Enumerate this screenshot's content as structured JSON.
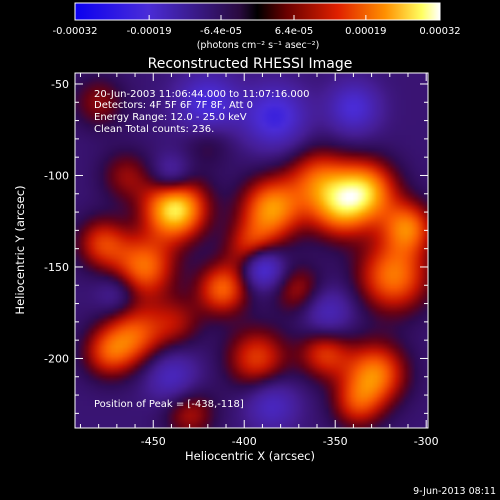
{
  "chart_data": {
    "type": "heatmap",
    "title": "Reconstructed RHESSI Image",
    "xlabel": "Heliocentric X (arcsec)",
    "ylabel": "Heliocentric Y (arcsec)",
    "xlim": [
      -493,
      -299
    ],
    "ylim": [
      -238,
      -44
    ],
    "x_ticks": [
      -450,
      -400,
      -350,
      -300
    ],
    "y_ticks": [
      -50,
      -100,
      -150,
      -200
    ],
    "colorbar": {
      "ticks": [
        -0.00032,
        -0.00019,
        -6.4e-05,
        6.4e-05,
        0.00019,
        0.00032
      ],
      "tick_labels": [
        "-0.00032",
        "-0.00019",
        "-6.4e-05",
        "6.4e-05",
        "0.00019",
        "0.00032"
      ],
      "units_label": "(photons cm⁻² s⁻¹ asec⁻²)",
      "range": [
        -0.00032,
        0.00032
      ]
    },
    "annotations": [
      "20-Jun-2003 11:06:44.000 to 11:07:16.000",
      "Detectors: 4F 5F 6F 7F 8F, Att 0",
      "Energy Range: 12.0 - 25.0 keV",
      "Clean    Total counts: 236."
    ],
    "peak_label": "Position of Peak = [-438,-118]",
    "peak": {
      "x": -438,
      "y": -118
    },
    "sources": [
      {
        "x": -438,
        "y": -118,
        "value": 0.00032,
        "r": 12
      },
      {
        "x": -385,
        "y": -118,
        "value": 0.00024,
        "r": 12
      },
      {
        "x": -396,
        "y": -140,
        "value": 0.00016,
        "r": 10
      },
      {
        "x": -412,
        "y": -162,
        "value": 0.0002,
        "r": 10
      },
      {
        "x": -455,
        "y": -150,
        "value": 0.00021,
        "r": 12
      },
      {
        "x": -478,
        "y": -137,
        "value": 0.00016,
        "r": 10
      },
      {
        "x": -460,
        "y": -187,
        "value": 0.00018,
        "r": 12
      },
      {
        "x": -475,
        "y": -197,
        "value": 0.00015,
        "r": 10
      },
      {
        "x": -360,
        "y": -101,
        "value": 0.00016,
        "r": 12
      },
      {
        "x": -348,
        "y": -118,
        "value": 0.0002,
        "r": 12
      },
      {
        "x": -333,
        "y": -108,
        "value": 0.00024,
        "r": 12
      },
      {
        "x": -318,
        "y": -155,
        "value": 0.00022,
        "r": 14
      },
      {
        "x": -310,
        "y": -128,
        "value": 0.0002,
        "r": 10
      },
      {
        "x": -328,
        "y": -208,
        "value": 0.00022,
        "r": 12
      },
      {
        "x": -356,
        "y": -197,
        "value": 0.00016,
        "r": 10
      },
      {
        "x": -338,
        "y": -225,
        "value": 0.00014,
        "r": 10
      },
      {
        "x": -393,
        "y": -200,
        "value": 0.00017,
        "r": 12
      },
      {
        "x": -430,
        "y": -230,
        "value": 0.00012,
        "r": 10
      },
      {
        "x": -370,
        "y": -163,
        "value": 0.00012,
        "r": 10
      },
      {
        "x": -420,
        "y": -80,
        "value": 8e-05,
        "r": 10
      },
      {
        "x": -465,
        "y": -100,
        "value": 0.0001,
        "r": 10
      },
      {
        "x": -480,
        "y": -60,
        "value": 0.0001,
        "r": 10
      },
      {
        "x": -437,
        "y": -180,
        "value": 0.0001,
        "r": 10
      },
      {
        "x": -420,
        "y": -62,
        "value": -0.00018,
        "r": 12
      },
      {
        "x": -383,
        "y": -68,
        "value": -0.00018,
        "r": 12
      },
      {
        "x": -340,
        "y": -63,
        "value": -0.00015,
        "r": 10
      },
      {
        "x": -390,
        "y": -150,
        "value": -0.00022,
        "r": 8
      },
      {
        "x": -440,
        "y": -100,
        "value": -0.00012,
        "r": 8
      },
      {
        "x": -470,
        "y": -165,
        "value": -8e-05,
        "r": 8
      },
      {
        "x": -355,
        "y": -175,
        "value": -0.00012,
        "r": 10
      },
      {
        "x": -440,
        "y": -210,
        "value": -0.00012,
        "r": 10
      },
      {
        "x": -385,
        "y": -225,
        "value": -0.00012,
        "r": 10
      }
    ]
  },
  "footer": {
    "date": "9-Jun-2013 08:11"
  }
}
